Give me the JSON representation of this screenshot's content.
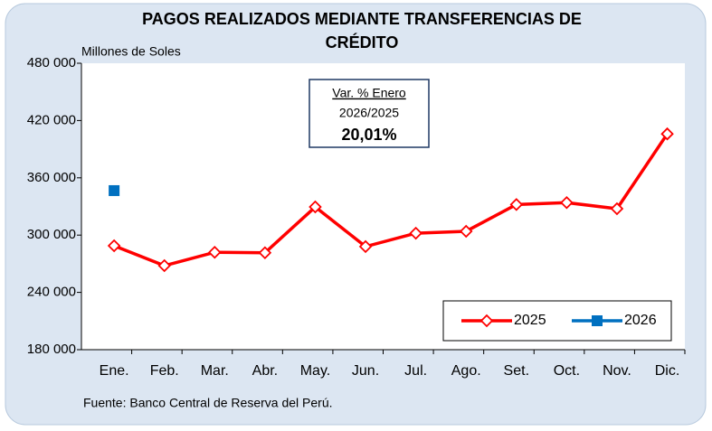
{
  "chart_data": {
    "type": "line",
    "title": "PAGOS REALIZADOS MEDIANTE TRANSFERENCIAS DE CRÉDITO",
    "y_label": "Millones de Soles",
    "source": "Fuente: Banco Central de Reserva del Perú.",
    "annotation": {
      "line1": "Var. % Enero",
      "line2": "2026/2025",
      "line3": "20,01%"
    },
    "categories": [
      "Ene.",
      "Feb.",
      "Mar.",
      "Abr.",
      "May.",
      "Jun.",
      "Jul.",
      "Ago.",
      "Set.",
      "Oct.",
      "Nov.",
      "Dic."
    ],
    "series": [
      {
        "name": "2025",
        "color": "#ff0000",
        "marker": "diamond",
        "values": [
          288800,
          268000,
          282000,
          281500,
          329500,
          288000,
          302000,
          304000,
          332000,
          334000,
          327600,
          406000
        ]
      },
      {
        "name": "2026",
        "color": "#0070c0",
        "marker": "square",
        "values": [
          346600,
          null,
          null,
          null,
          null,
          null,
          null,
          null,
          null,
          null,
          null,
          null
        ]
      }
    ],
    "ylim": [
      180000,
      480000
    ],
    "yticks": [
      {
        "value": 180000,
        "label": "180 000"
      },
      {
        "value": 240000,
        "label": "240 000"
      },
      {
        "value": 300000,
        "label": "300 000"
      },
      {
        "value": 360000,
        "label": "360 000"
      },
      {
        "value": 420000,
        "label": "420 000"
      },
      {
        "value": 480000,
        "label": "480 000"
      }
    ],
    "grid": false,
    "legend": "bottom-right"
  }
}
